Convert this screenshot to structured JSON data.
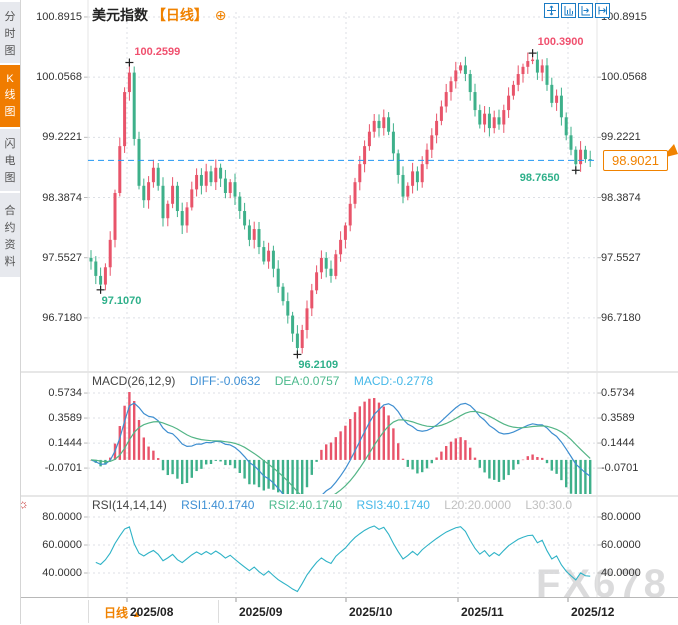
{
  "watermark": "FX678",
  "sidebar": {
    "tabs": [
      {
        "label": "分时图",
        "active": false
      },
      {
        "label": "K线图",
        "active": true
      },
      {
        "label": "闪电图",
        "active": false
      },
      {
        "label": "合约资料",
        "active": false
      }
    ]
  },
  "header": {
    "title": "美元指数",
    "period_tag": "【日线】",
    "add_icon_glyph": "⊕"
  },
  "toolbar": {
    "icons": [
      "pan",
      "fit-vertical",
      "fit-horizontal",
      "scroll-right"
    ]
  },
  "bottom_bar": {
    "period_label": "日线",
    "arrow_glyph": "▲"
  },
  "rsi_panel_icon_glyph": "☼",
  "colors": {
    "accent_orange": "#f08200",
    "up_red": "#e8546a",
    "down_green": "#3eb08a",
    "diff_blue": "#3e8ed0",
    "dea_green": "#53b586",
    "rsi_cyan": "#2fb3c7",
    "price_line_blue": "#2196f3",
    "anno_red": "#f0506e",
    "anno_green": "#2eb08a",
    "grid": "#dcdfe5"
  },
  "chart_data": {
    "type": "candlestick",
    "title": "美元指数 日线",
    "x_labels": [
      "2025/08",
      "2025/09",
      "2025/10",
      "2025/11",
      "2025/12"
    ],
    "main": {
      "y_ticks": [
        "100.8915",
        "100.0568",
        "99.2221",
        "98.3874",
        "97.5527",
        "96.7180"
      ],
      "ylim": [
        96.2,
        100.9
      ],
      "closes": [
        97.5,
        97.3,
        97.18,
        97.42,
        97.8,
        98.45,
        99.1,
        99.85,
        100.12,
        99.2,
        98.55,
        98.35,
        98.6,
        98.8,
        98.55,
        98.1,
        98.3,
        98.55,
        98.2,
        98.0,
        98.25,
        98.5,
        98.7,
        98.55,
        98.75,
        98.6,
        98.8,
        98.65,
        98.45,
        98.6,
        98.4,
        98.2,
        98.0,
        97.8,
        97.95,
        97.7,
        97.5,
        97.65,
        97.4,
        97.15,
        96.95,
        96.75,
        96.5,
        96.3,
        96.55,
        96.85,
        97.1,
        97.35,
        97.55,
        97.4,
        97.3,
        97.6,
        97.8,
        98.0,
        98.3,
        98.6,
        98.85,
        99.1,
        99.3,
        99.45,
        99.35,
        99.5,
        99.3,
        99.0,
        98.7,
        98.4,
        98.55,
        98.75,
        98.6,
        98.85,
        99.05,
        99.25,
        99.45,
        99.65,
        99.85,
        100.0,
        100.15,
        100.22,
        100.1,
        99.85,
        99.6,
        99.4,
        99.55,
        99.35,
        99.5,
        99.4,
        99.6,
        99.8,
        99.95,
        100.1,
        100.2,
        100.28,
        100.3,
        100.12,
        100.22,
        99.95,
        99.7,
        99.8,
        99.5,
        99.25,
        99.05,
        98.85,
        99.05,
        98.92,
        98.9021
      ],
      "extremes": {
        "2": {
          "low": 97.107
        },
        "8": {
          "high": 100.2599
        },
        "43": {
          "low": 96.2109
        },
        "92": {
          "high": 100.39
        }
      },
      "last_price": 98.9021,
      "last_price_label": "98.9021",
      "annotations": [
        {
          "text": "100.2599",
          "index": 8,
          "price": 100.2599,
          "side": "above",
          "color": "red"
        },
        {
          "text": "100.3900",
          "index": 92,
          "price": 100.39,
          "side": "above",
          "color": "red"
        },
        {
          "text": "97.1070",
          "index": 2,
          "price": 97.107,
          "side": "below",
          "color": "green"
        },
        {
          "text": "96.2109",
          "index": 43,
          "price": 96.2109,
          "side": "below",
          "color": "green"
        },
        {
          "text": "98.7650",
          "index": 101,
          "price": 98.765,
          "side": "left-below",
          "color": "green"
        }
      ]
    },
    "macd": {
      "label": "MACD(26,12,9)",
      "diff_label": "DIFF:-0.0632",
      "dea_label": "DEA:0.0757",
      "macd_label": "MACD:-0.2778",
      "params": [
        26,
        12,
        9
      ],
      "y_ticks": [
        "0.5734",
        "0.3589",
        "0.1444",
        "-0.0701"
      ]
    },
    "rsi": {
      "label": "RSI(14,14,14)",
      "rsi1_label": "RSI1:40.1740",
      "rsi2_label": "RSI2:40.1740",
      "rsi3_label": "RSI3:40.1740",
      "l20_label": "L20:20.0000",
      "l30_label": "L30:30.0",
      "period": 14,
      "y_ticks": [
        "80.0000",
        "60.0000",
        "40.0000"
      ]
    }
  }
}
